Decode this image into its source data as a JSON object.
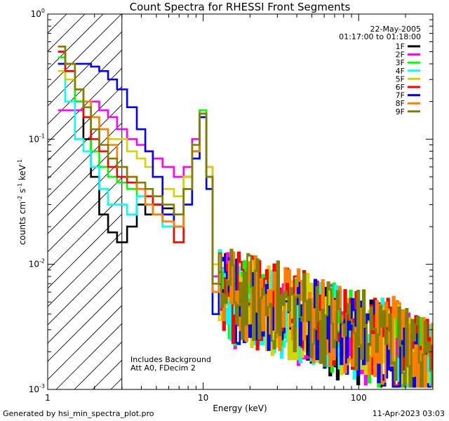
{
  "chart_data": {
    "type": "line",
    "title": "Count Spectra for RHESSI Front Segments",
    "xlabel": "Energy (keV)",
    "ylabel": {
      "base": "counts cm",
      "exp1": "-2",
      "mid": " s",
      "exp2": "-1",
      "mid2": " keV",
      "exp3": "-1"
    },
    "x_scale": "log",
    "y_scale": "log",
    "xlim": [
      1,
      300
    ],
    "ylim": [
      0.001,
      1
    ],
    "x_ticks": [
      {
        "value": 1,
        "label": "1"
      },
      {
        "value": 10,
        "label": "10"
      },
      {
        "value": 100,
        "label": "100"
      }
    ],
    "y_ticks": [
      {
        "value": 1,
        "base": "10",
        "exp": "0"
      },
      {
        "value": 0.1,
        "base": "10",
        "exp": "-1"
      },
      {
        "value": 0.01,
        "base": "10",
        "exp": "-2"
      },
      {
        "value": 0.001,
        "base": "10",
        "exp": "-3"
      }
    ],
    "hatch_region": {
      "x_from": 1,
      "x_to": 3
    },
    "date": "22-May-2005",
    "time_range": "01:17:00 to 01:18:00",
    "annotation_lines": [
      "Includes Background",
      "Att A0, FDecim 2"
    ],
    "series": [
      {
        "name": "1F",
        "color": "#000000"
      },
      {
        "name": "2F",
        "color": "#ff00ff"
      },
      {
        "name": "3F",
        "color": "#00ff00"
      },
      {
        "name": "4F",
        "color": "#00ffff"
      },
      {
        "name": "5F",
        "color": "#d4d400"
      },
      {
        "name": "6F",
        "color": "#ff0000"
      },
      {
        "name": "7F",
        "color": "#0000ff"
      },
      {
        "name": "8F",
        "color": "#ff8000"
      },
      {
        "name": "9F",
        "color": "#808000"
      }
    ],
    "low_energy_points": {
      "x": [
        1.2,
        1.4,
        1.6,
        1.8,
        2.0,
        2.3,
        2.6,
        3.0,
        3.5,
        4.0,
        4.5,
        5.0,
        6.0,
        7.0,
        8.0,
        9.0,
        10.0,
        11.0,
        12.0
      ],
      "1F": [
        0.5,
        0.35,
        0.2,
        0.1,
        0.05,
        0.025,
        0.018,
        0.015,
        0.02,
        0.03,
        0.025,
        0.03,
        0.028,
        0.025,
        0.05,
        0.08,
        0.15,
        0.05,
        0.006
      ],
      "2F": [
        0.17,
        0.17,
        0.17,
        0.18,
        0.2,
        0.17,
        0.15,
        0.12,
        0.1,
        0.09,
        0.08,
        0.07,
        0.06,
        0.05,
        0.06,
        0.1,
        0.17,
        0.06,
        0.008
      ],
      "3F": [
        0.45,
        0.3,
        0.2,
        0.15,
        0.08,
        0.06,
        0.05,
        0.045,
        0.04,
        0.035,
        0.03,
        0.025,
        0.02,
        0.015,
        0.04,
        0.08,
        0.17,
        0.05,
        0.006
      ],
      "4F": [
        0.4,
        0.2,
        0.1,
        0.08,
        0.06,
        0.04,
        0.03,
        0.03,
        0.025,
        0.035,
        0.03,
        0.025,
        0.02,
        0.02,
        0.03,
        0.07,
        0.15,
        0.04,
        0.004
      ],
      "5F": [
        0.35,
        0.3,
        0.25,
        0.2,
        0.15,
        0.12,
        0.1,
        0.1,
        0.08,
        0.07,
        0.06,
        0.05,
        0.04,
        0.035,
        0.05,
        0.09,
        0.16,
        0.06,
        0.01
      ],
      "6F": [
        0.5,
        0.35,
        0.25,
        0.15,
        0.1,
        0.08,
        0.06,
        0.05,
        0.045,
        0.04,
        0.035,
        0.03,
        0.025,
        0.015,
        0.04,
        0.08,
        0.16,
        0.05,
        0.006
      ],
      "7F": [
        0.4,
        0.4,
        0.4,
        0.4,
        0.38,
        0.35,
        0.3,
        0.25,
        0.18,
        0.12,
        0.08,
        0.05,
        0.025,
        0.02,
        0.03,
        0.07,
        0.15,
        0.04,
        0.004
      ],
      "8F": [
        0.55,
        0.4,
        0.25,
        0.2,
        0.15,
        0.12,
        0.09,
        0.06,
        0.05,
        0.04,
        0.03,
        0.025,
        0.022,
        0.02,
        0.04,
        0.08,
        0.16,
        0.05,
        0.006
      ],
      "9F": [
        0.55,
        0.4,
        0.25,
        0.18,
        0.12,
        0.09,
        0.07,
        0.06,
        0.05,
        0.045,
        0.04,
        0.035,
        0.03,
        0.025,
        0.04,
        0.09,
        0.16,
        0.05,
        0.007
      ]
    },
    "high_energy_trend": {
      "x": [
        12,
        20,
        40,
        80,
        150,
        300
      ],
      "y": [
        0.006,
        0.005,
        0.004,
        0.003,
        0.0024,
        0.0015
      ]
    }
  },
  "footer": {
    "generated_by": "Generated by hsi_min_spectra_plot.pro",
    "timestamp": "11-Apr-2023 03:03"
  }
}
